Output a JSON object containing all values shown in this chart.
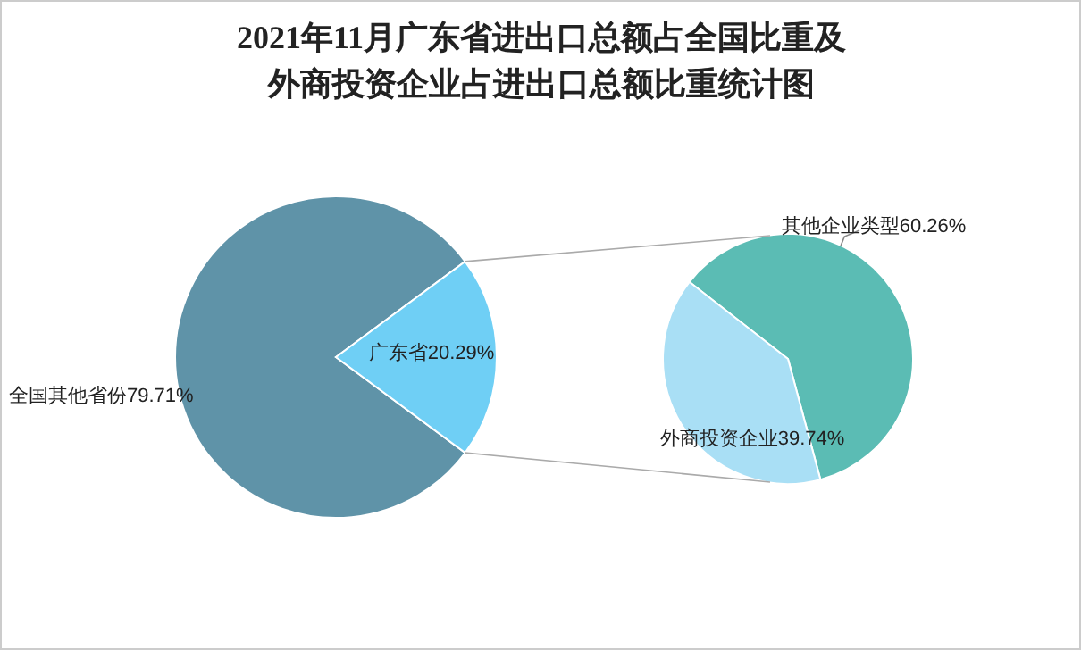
{
  "chart_data": [
    {
      "type": "pie",
      "title": "2021年11月广东省进出口总额占全国比重及外商投资企业占进出口总额比重统计图",
      "categories": [
        "全国其他省份",
        "广东省"
      ],
      "values": [
        79.71,
        20.29
      ],
      "colors": [
        "#5f93a8",
        "#6fcff5"
      ],
      "value_labels": [
        "79.71%",
        "20.29%"
      ]
    },
    {
      "type": "pie",
      "categories": [
        "其他企业类型",
        "外商投资企业"
      ],
      "values": [
        60.26,
        39.74
      ],
      "colors": [
        "#5bbcb4",
        "#a9dff5"
      ],
      "value_labels": [
        "60.26%",
        "39.74%"
      ]
    }
  ]
}
